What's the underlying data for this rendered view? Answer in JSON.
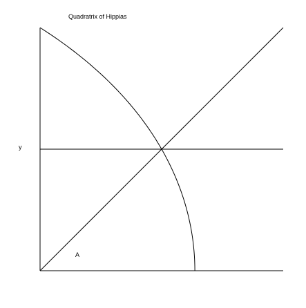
{
  "title": "Quadratrix of Hippias",
  "labels": {
    "y": "y",
    "angle": "A"
  },
  "colors": {
    "background": "#ffffff",
    "ink": "#000000"
  }
}
